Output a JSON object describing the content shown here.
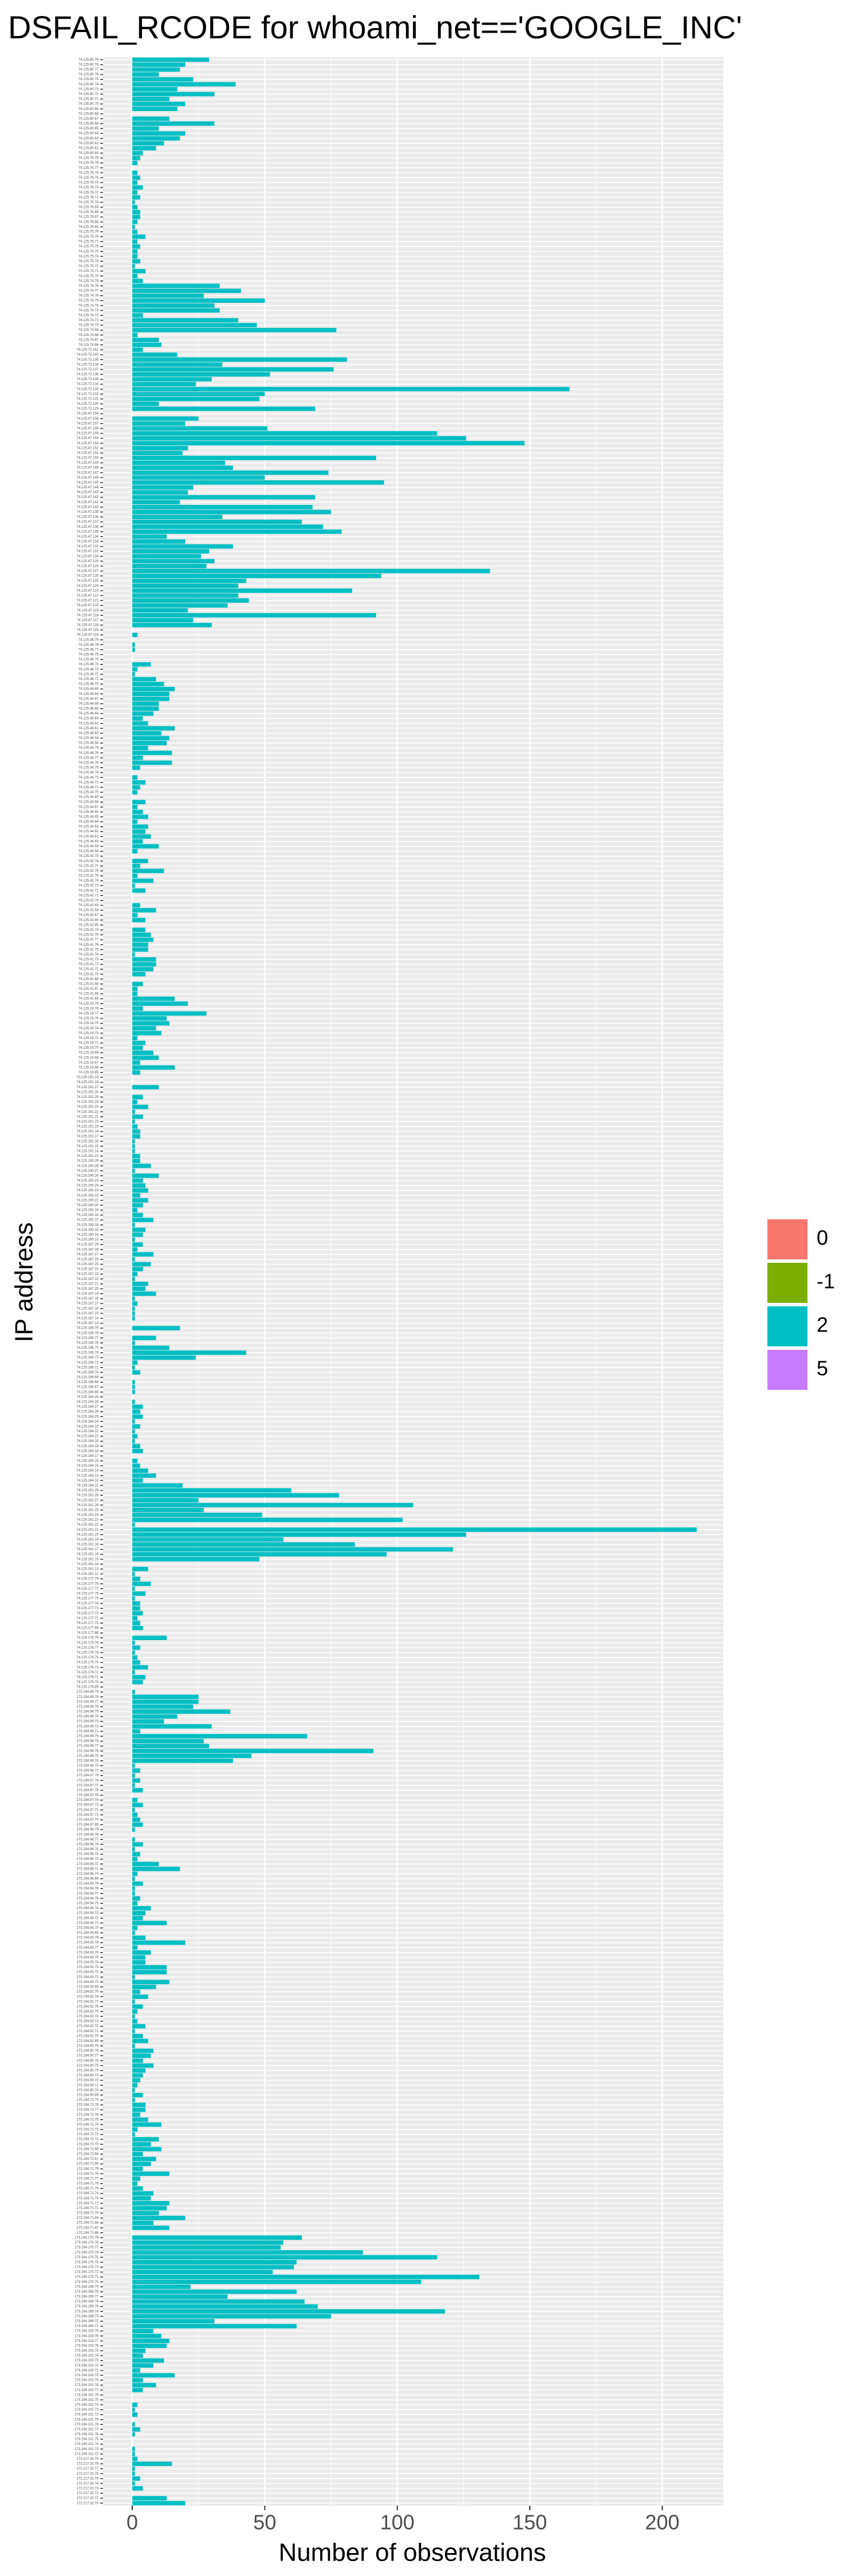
{
  "chart_data": {
    "type": "bar",
    "orientation": "horizontal",
    "title": "DSFAIL_RCODE for whoami_net=='GOOGLE_INC'",
    "x_label": "Number of observations",
    "y_label": "IP address",
    "color": "#00BFC4",
    "grid": true,
    "legend_position": "right",
    "legend": [
      {
        "name": "0",
        "color": "#F8766D"
      },
      {
        "name": "-1",
        "color": "#7CAE00"
      },
      {
        "name": "2",
        "color": "#00BFC4"
      },
      {
        "name": "5",
        "color": "#C77CFF"
      }
    ],
    "xlim": [
      -11,
      223
    ],
    "xticks": [
      0,
      50,
      100,
      150,
      200
    ],
    "categories": [
      "74.125.80.79",
      "74.125.80.78",
      "74.125.80.77",
      "74.125.80.76",
      "74.125.80.75",
      "74.125.80.74",
      "74.125.80.73",
      "74.125.80.72",
      "74.125.80.71",
      "74.125.80.70",
      "74.125.80.69",
      "74.125.80.68",
      "74.125.80.67",
      "74.125.80.66",
      "74.125.80.65",
      "74.125.80.64",
      "74.125.80.63",
      "74.125.80.62",
      "74.125.80.61",
      "74.125.80.60",
      "74.125.76.79",
      "74.125.76.78",
      "74.125.76.77",
      "74.125.76.76",
      "74.125.76.75",
      "74.125.76.74",
      "74.125.76.73",
      "74.125.76.72",
      "74.125.76.71",
      "74.125.76.70",
      "74.125.76.69",
      "74.125.76.68",
      "74.125.76.67",
      "74.125.76.66",
      "74.125.76.65",
      "74.125.75.79",
      "74.125.75.78",
      "74.125.75.77",
      "74.125.75.76",
      "74.125.75.75",
      "74.125.75.74",
      "74.125.75.73",
      "74.125.75.72",
      "74.125.75.71",
      "74.125.75.70",
      "74.125.74.79",
      "74.125.74.78",
      "74.125.74.77",
      "74.125.74.76",
      "74.125.74.75",
      "74.125.74.74",
      "74.125.74.73",
      "74.125.74.72",
      "74.125.74.71",
      "74.125.74.70",
      "74.125.74.69",
      "74.125.74.68",
      "74.125.74.67",
      "74.125.74.66",
      "74.125.72.141",
      "74.125.72.140",
      "74.125.72.139",
      "74.125.72.138",
      "74.125.72.137",
      "74.125.72.136",
      "74.125.72.135",
      "74.125.72.134",
      "74.125.72.133",
      "74.125.72.132",
      "74.125.72.131",
      "74.125.72.130",
      "74.125.72.129",
      "74.125.47.159",
      "74.125.47.158",
      "74.125.47.157",
      "74.125.47.156",
      "74.125.47.155",
      "74.125.47.154",
      "74.125.47.153",
      "74.125.47.152",
      "74.125.47.151",
      "74.125.47.150",
      "74.125.47.149",
      "74.125.47.148",
      "74.125.47.147",
      "74.125.47.146",
      "74.125.47.145",
      "74.125.47.144",
      "74.125.47.143",
      "74.125.47.142",
      "74.125.47.141",
      "74.125.47.140",
      "74.125.47.139",
      "74.125.47.138",
      "74.125.47.137",
      "74.125.47.136",
      "74.125.47.135",
      "74.125.47.134",
      "74.125.47.133",
      "74.125.47.132",
      "74.125.47.131",
      "74.125.47.130",
      "74.125.47.129",
      "74.125.47.128",
      "74.125.47.127",
      "74.125.47.126",
      "74.125.47.125",
      "74.125.47.124",
      "74.125.47.123",
      "74.125.47.122",
      "74.125.47.121",
      "74.125.47.120",
      "74.125.47.119",
      "74.125.47.118",
      "74.125.47.117",
      "74.125.47.116",
      "74.125.47.115",
      "74.125.47.114",
      "74.125.46.79",
      "74.125.46.78",
      "74.125.46.77",
      "74.125.46.76",
      "74.125.46.75",
      "74.125.46.74",
      "74.125.46.73",
      "74.125.46.72",
      "74.125.46.71",
      "74.125.46.70",
      "74.125.46.69",
      "74.125.46.68",
      "74.125.46.67",
      "74.125.46.66",
      "74.125.46.65",
      "74.125.46.64",
      "74.125.46.63",
      "74.125.46.62",
      "74.125.46.61",
      "74.125.46.60",
      "74.125.46.59",
      "74.125.46.58",
      "74.125.44.79",
      "74.125.44.78",
      "74.125.44.77",
      "74.125.44.76",
      "74.125.44.75",
      "74.125.44.74",
      "74.125.44.73",
      "74.125.44.72",
      "74.125.44.71",
      "74.125.44.70",
      "74.125.44.69",
      "74.125.44.68",
      "74.125.44.67",
      "74.125.44.66",
      "74.125.44.65",
      "74.125.44.64",
      "74.125.44.63",
      "74.125.44.62",
      "74.125.44.61",
      "74.125.44.60",
      "74.125.44.59",
      "74.125.44.58",
      "74.125.42.79",
      "74.125.42.78",
      "74.125.42.77",
      "74.125.42.76",
      "74.125.42.75",
      "74.125.42.74",
      "74.125.42.73",
      "74.125.42.72",
      "74.125.42.71",
      "74.125.42.70",
      "74.125.42.69",
      "74.125.42.68",
      "74.125.42.67",
      "74.125.42.66",
      "74.125.42.65",
      "74.125.41.79",
      "74.125.41.78",
      "74.125.41.77",
      "74.125.41.76",
      "74.125.41.75",
      "74.125.41.74",
      "74.125.41.73",
      "74.125.41.72",
      "74.125.41.71",
      "74.125.41.70",
      "74.125.41.69",
      "74.125.41.68",
      "74.125.41.67",
      "74.125.41.66",
      "74.125.41.65",
      "74.125.19.79",
      "74.125.19.78",
      "74.125.19.77",
      "74.125.19.76",
      "74.125.19.75",
      "74.125.19.74",
      "74.125.19.73",
      "74.125.19.72",
      "74.125.19.71",
      "74.125.19.70",
      "74.125.19.69",
      "74.125.19.68",
      "74.125.19.67",
      "74.125.19.66",
      "74.125.19.65",
      "74.125.191.29",
      "74.125.191.28",
      "74.125.191.27",
      "74.125.191.26",
      "74.125.191.25",
      "74.125.191.24",
      "74.125.191.23",
      "74.125.191.22",
      "74.125.191.21",
      "74.125.191.20",
      "74.125.191.19",
      "74.125.191.18",
      "74.125.191.17",
      "74.125.191.16",
      "74.125.191.15",
      "74.125.191.14",
      "74.125.191.13",
      "74.125.190.29",
      "74.125.190.28",
      "74.125.190.27",
      "74.125.190.26",
      "74.125.190.25",
      "74.125.190.24",
      "74.125.190.23",
      "74.125.190.22",
      "74.125.190.21",
      "74.125.190.20",
      "74.125.190.19",
      "74.125.190.18",
      "74.125.190.17",
      "74.125.190.16",
      "74.125.190.15",
      "74.125.190.14",
      "74.125.190.13",
      "74.125.187.29",
      "74.125.187.28",
      "74.125.187.27",
      "74.125.187.26",
      "74.125.187.25",
      "74.125.187.24",
      "74.125.187.23",
      "74.125.187.22",
      "74.125.187.21",
      "74.125.187.20",
      "74.125.187.19",
      "74.125.187.18",
      "74.125.187.17",
      "74.125.187.16",
      "74.125.187.15",
      "74.125.187.14",
      "74.125.187.13",
      "74.125.186.79",
      "74.125.186.78",
      "74.125.186.77",
      "74.125.186.76",
      "74.125.186.75",
      "74.125.186.74",
      "74.125.186.73",
      "74.125.186.72",
      "74.125.186.71",
      "74.125.186.70",
      "74.125.186.69",
      "74.125.186.68",
      "74.125.186.67",
      "74.125.186.66",
      "74.125.184.29",
      "74.125.184.28",
      "74.125.184.27",
      "74.125.184.26",
      "74.125.184.25",
      "74.125.184.24",
      "74.125.184.23",
      "74.125.184.22",
      "74.125.184.21",
      "74.125.184.20",
      "74.125.184.19",
      "74.125.184.18",
      "74.125.184.17",
      "74.125.184.16",
      "74.125.184.15",
      "74.125.184.14",
      "74.125.184.13",
      "74.125.184.12",
      "74.125.184.11",
      "74.125.181.29",
      "74.125.181.28",
      "74.125.181.27",
      "74.125.181.26",
      "74.125.181.25",
      "74.125.181.24",
      "74.125.181.23",
      "74.125.181.22",
      "74.125.181.21",
      "74.125.181.20",
      "74.125.181.19",
      "74.125.181.18",
      "74.125.181.17",
      "74.125.181.16",
      "74.125.181.15",
      "74.125.181.14",
      "74.125.181.13",
      "74.125.181.12",
      "74.125.177.79",
      "74.125.177.78",
      "74.125.177.77",
      "74.125.177.76",
      "74.125.177.75",
      "74.125.177.74",
      "74.125.177.73",
      "74.125.177.72",
      "74.125.177.71",
      "74.125.177.70",
      "74.125.177.69",
      "74.125.177.68",
      "74.125.176.79",
      "74.125.176.78",
      "74.125.176.77",
      "74.125.176.76",
      "74.125.176.75",
      "74.125.176.74",
      "74.125.176.73",
      "74.125.176.72",
      "74.125.176.71",
      "74.125.176.70",
      "74.125.176.69",
      "173.194.99.79",
      "173.194.99.78",
      "173.194.99.77",
      "173.194.99.76",
      "173.194.99.75",
      "173.194.99.74",
      "173.194.99.73",
      "173.194.99.72",
      "173.194.99.71",
      "173.194.98.79",
      "173.194.98.78",
      "173.194.98.77",
      "173.194.98.76",
      "173.194.98.75",
      "173.194.98.74",
      "173.194.98.73",
      "173.194.98.72",
      "173.194.97.79",
      "173.194.97.78",
      "173.194.97.77",
      "173.194.97.76",
      "173.194.97.75",
      "173.194.97.74",
      "173.194.97.73",
      "173.194.97.72",
      "173.194.97.71",
      "173.194.97.70",
      "173.194.97.69",
      "173.194.96.79",
      "173.194.96.78",
      "173.194.96.77",
      "173.194.96.76",
      "173.194.96.75",
      "173.194.96.74",
      "173.194.96.73",
      "173.194.96.72",
      "173.194.96.71",
      "173.194.96.70",
      "173.194.96.69",
      "173.194.94.79",
      "173.194.94.78",
      "173.194.94.77",
      "173.194.94.76",
      "173.194.94.75",
      "173.194.94.74",
      "173.194.94.73",
      "173.194.94.72",
      "173.194.94.71",
      "173.194.94.70",
      "173.194.94.69",
      "173.194.93.79",
      "173.194.93.78",
      "173.194.93.77",
      "173.194.93.76",
      "173.194.93.75",
      "173.194.93.74",
      "173.194.93.73",
      "173.194.93.72",
      "173.194.93.71",
      "173.194.93.70",
      "173.194.93.69",
      "173.194.92.79",
      "173.194.92.78",
      "173.194.92.77",
      "173.194.92.76",
      "173.194.92.75",
      "173.194.92.74",
      "173.194.92.73",
      "173.194.92.72",
      "173.194.92.71",
      "173.194.92.70",
      "173.194.92.69",
      "173.194.90.79",
      "173.194.90.78",
      "173.194.90.77",
      "173.194.90.76",
      "173.194.90.75",
      "173.194.90.74",
      "173.194.90.73",
      "173.194.90.72",
      "173.194.90.71",
      "173.194.90.70",
      "173.194.90.69",
      "173.194.72.79",
      "173.194.72.78",
      "173.194.72.77",
      "173.194.72.76",
      "173.194.72.75",
      "173.194.72.74",
      "173.194.72.73",
      "173.194.72.72",
      "173.194.72.71",
      "173.194.72.70",
      "173.194.72.69",
      "173.194.72.68",
      "173.194.72.67",
      "173.194.72.66",
      "173.194.71.79",
      "173.194.71.78",
      "173.194.71.77",
      "173.194.71.76",
      "173.194.71.75",
      "173.194.71.74",
      "173.194.71.73",
      "173.194.71.72",
      "173.194.71.71",
      "173.194.71.70",
      "173.194.71.69",
      "173.194.71.68",
      "173.194.71.67",
      "173.194.71.66",
      "173.194.170.79",
      "173.194.170.78",
      "173.194.170.77",
      "173.194.170.76",
      "173.194.170.75",
      "173.194.170.74",
      "173.194.170.73",
      "173.194.170.72",
      "173.194.170.71",
      "173.194.170.70",
      "173.194.169.79",
      "173.194.169.78",
      "173.194.169.77",
      "173.194.169.76",
      "173.194.169.75",
      "173.194.169.74",
      "173.194.169.73",
      "173.194.169.72",
      "173.194.169.71",
      "173.194.103.79",
      "173.194.103.78",
      "173.194.103.77",
      "173.194.103.76",
      "173.194.103.75",
      "173.194.103.74",
      "173.194.103.73",
      "173.194.103.72",
      "173.194.103.71",
      "173.194.103.70",
      "173.194.102.79",
      "173.194.102.78",
      "173.194.102.77",
      "173.194.102.76",
      "173.194.102.75",
      "173.194.102.74",
      "173.194.102.73",
      "173.194.102.72",
      "173.194.101.79",
      "173.194.101.78",
      "173.194.101.77",
      "173.194.101.76",
      "173.194.101.75",
      "173.194.101.74",
      "173.194.101.73",
      "173.194.101.72",
      "172.217.32.79",
      "172.217.32.78",
      "172.217.32.77",
      "172.217.32.76",
      "172.217.32.75",
      "172.217.32.74",
      "172.217.32.73",
      "172.217.32.72",
      "172.217.32.71",
      "172.217.32.70"
    ],
    "values": [
      29,
      20,
      18,
      10,
      23,
      39,
      17,
      31,
      14,
      20,
      17,
      0,
      14,
      31,
      10,
      20,
      18,
      12,
      9,
      4,
      3,
      2,
      0,
      2,
      3,
      2,
      4,
      2,
      3,
      1,
      2,
      3,
      3,
      2,
      1,
      2,
      5,
      2,
      3,
      2,
      2,
      3,
      1,
      5,
      2,
      4,
      33,
      41,
      27,
      50,
      31,
      33,
      4,
      40,
      47,
      77,
      2,
      10,
      11,
      4,
      17,
      81,
      34,
      76,
      52,
      30,
      24,
      165,
      50,
      48,
      10,
      69,
      0,
      25,
      20,
      51,
      115,
      126,
      148,
      21,
      19,
      92,
      35,
      38,
      74,
      50,
      95,
      23,
      21,
      69,
      18,
      68,
      75,
      34,
      64,
      72,
      79,
      13,
      20,
      38,
      29,
      26,
      31,
      28,
      135,
      94,
      43,
      40,
      83,
      40,
      44,
      36,
      21,
      92,
      23,
      30,
      0,
      2,
      0,
      1,
      1,
      0,
      0,
      7,
      2,
      1,
      9,
      12,
      16,
      14,
      14,
      10,
      10,
      8,
      4,
      6,
      16,
      11,
      14,
      13,
      6,
      15,
      4,
      15,
      3,
      0,
      2,
      5,
      3,
      2,
      0,
      5,
      2,
      4,
      6,
      2,
      6,
      5,
      7,
      4,
      10,
      2,
      0,
      6,
      3,
      12,
      2,
      8,
      1,
      5,
      0,
      0,
      3,
      9,
      2,
      5,
      0,
      5,
      7,
      8,
      6,
      6,
      1,
      9,
      9,
      8,
      5,
      0,
      4,
      2,
      2,
      16,
      21,
      4,
      28,
      13,
      14,
      9,
      11,
      2,
      5,
      4,
      8,
      10,
      3,
      16,
      3,
      0,
      0,
      10,
      0,
      4,
      2,
      6,
      1,
      4,
      1,
      2,
      3,
      3,
      1,
      1,
      1,
      3,
      3,
      7,
      1,
      10,
      4,
      5,
      6,
      3,
      6,
      4,
      2,
      4,
      8,
      1,
      5,
      4,
      1,
      4,
      2,
      8,
      1,
      7,
      4,
      2,
      1,
      6,
      5,
      9,
      1,
      2,
      1,
      1,
      1,
      0,
      18,
      0,
      9,
      1,
      14,
      43,
      24,
      2,
      1,
      3,
      0,
      1,
      1,
      1,
      0,
      1,
      4,
      3,
      4,
      1,
      3,
      1,
      2,
      1,
      3,
      4,
      0,
      2,
      3,
      6,
      9,
      4,
      19,
      60,
      78,
      25,
      106,
      27,
      49,
      102,
      1,
      213,
      126,
      57,
      84,
      121,
      96,
      48,
      0,
      6,
      1,
      3,
      7,
      1,
      5,
      1,
      3,
      3,
      4,
      2,
      3,
      4,
      0,
      13,
      1,
      3,
      1,
      2,
      3,
      6,
      1,
      5,
      4,
      0,
      1,
      25,
      25,
      23,
      37,
      17,
      12,
      30,
      3,
      66,
      27,
      29,
      91,
      45,
      38,
      1,
      3,
      1,
      3,
      1,
      4,
      0,
      2,
      4,
      1,
      2,
      3,
      4,
      1,
      0,
      1,
      4,
      1,
      3,
      2,
      10,
      18,
      2,
      1,
      4,
      1,
      1,
      3,
      2,
      7,
      5,
      4,
      13,
      2,
      1,
      5,
      20,
      2,
      7,
      5,
      5,
      13,
      13,
      1,
      14,
      9,
      3,
      6,
      1,
      4,
      2,
      1,
      2,
      5,
      1,
      4,
      6,
      1,
      8,
      7,
      4,
      8,
      5,
      4,
      3,
      2,
      1,
      4,
      1,
      5,
      5,
      3,
      6,
      11,
      2,
      1,
      10,
      7,
      11,
      4,
      9,
      7,
      4,
      14,
      3,
      2,
      4,
      8,
      7,
      14,
      13,
      10,
      20,
      8,
      14,
      0,
      64,
      57,
      56,
      87,
      115,
      62,
      61,
      53,
      131,
      109,
      22,
      62,
      36,
      65,
      70,
      118,
      75,
      31,
      62,
      8,
      11,
      14,
      13,
      5,
      4,
      12,
      8,
      3,
      16,
      4,
      9,
      4,
      0,
      0,
      2,
      1,
      2,
      0,
      1,
      3,
      1,
      0,
      0,
      1,
      1,
      2,
      15,
      1,
      1,
      3,
      1,
      4,
      0,
      13,
      20
    ]
  }
}
